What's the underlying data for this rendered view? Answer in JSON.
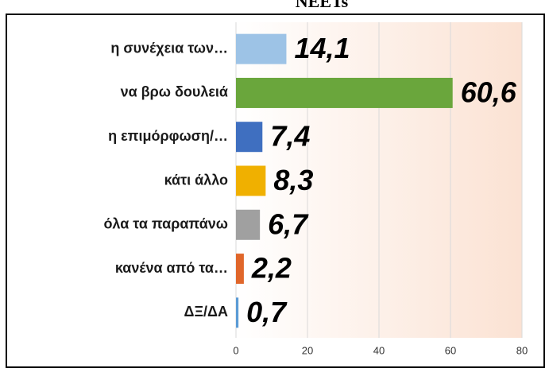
{
  "chart_data": {
    "type": "hbar",
    "title": "NEETs",
    "categories": [
      "η συνέχεια των…",
      "να βρω δουλειά",
      "η επιμόρφωση/…",
      "κάτι άλλο",
      "όλα τα παραπάνω",
      "κανένα από τα…",
      "ΔΞ/ΔΑ"
    ],
    "values": [
      14.1,
      60.6,
      7.4,
      8.3,
      6.7,
      2.2,
      0.7
    ],
    "value_labels": [
      "14,1",
      "60,6",
      "7,4",
      "8,3",
      "6,7",
      "2,2",
      "0,7"
    ],
    "colors": [
      "#9dc3e6",
      "#6aa63c",
      "#3f6fc0",
      "#f0b000",
      "#a0a0a0",
      "#e0662a",
      "#5b9bd5"
    ],
    "xlim": [
      0,
      80
    ],
    "xticks": [
      0,
      20,
      40,
      60,
      80
    ],
    "grid": true
  }
}
